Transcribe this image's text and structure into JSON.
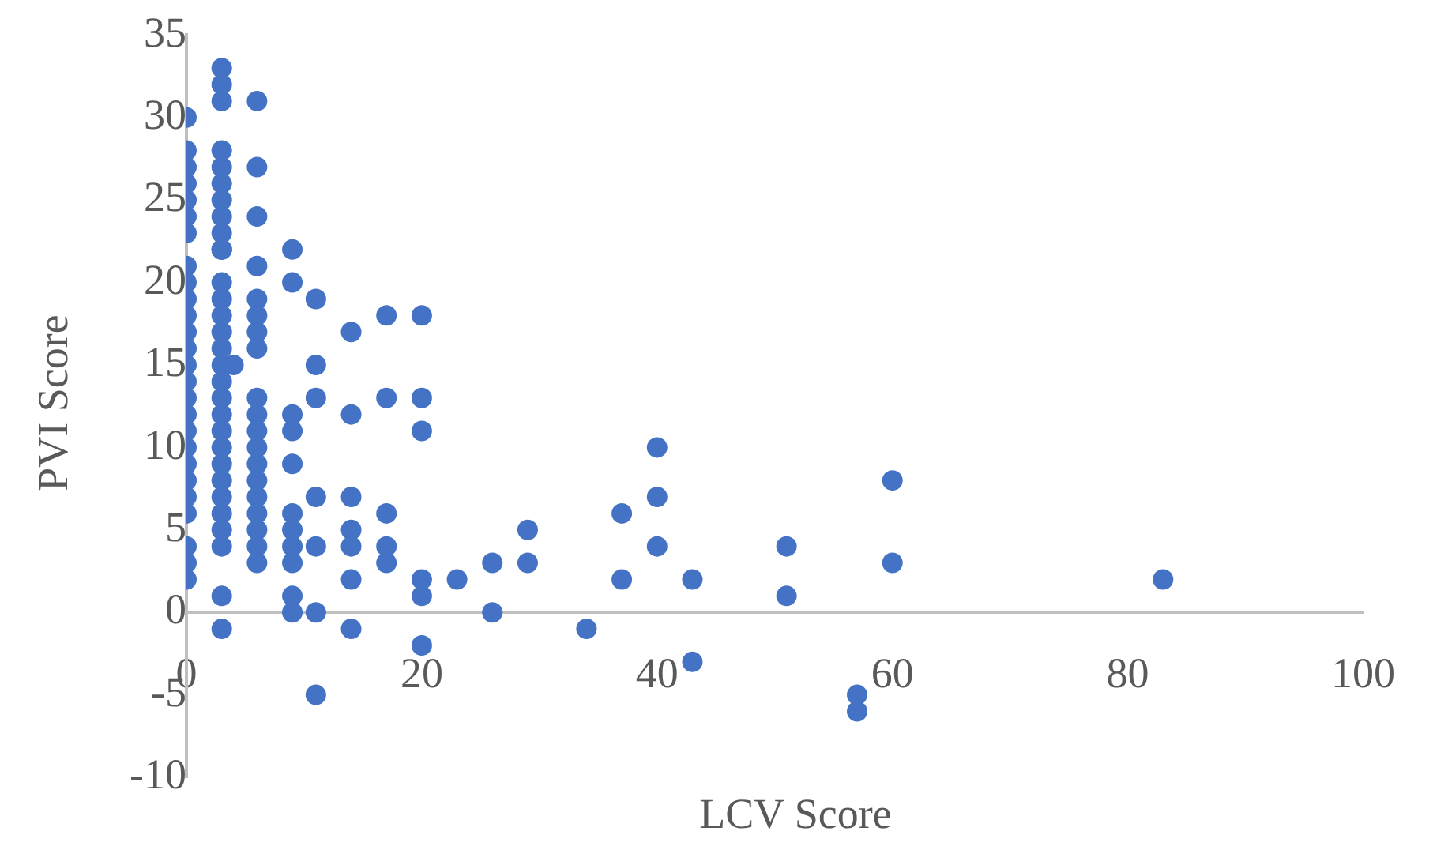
{
  "chart_data": {
    "type": "scatter",
    "xlabel": "LCV Score",
    "ylabel": "PVI Score",
    "xlim": [
      0,
      100
    ],
    "xticks": [
      0,
      20,
      40,
      60,
      80,
      100
    ],
    "ylim": [
      -10,
      35
    ],
    "yticks": [
      -10,
      -5,
      0,
      5,
      10,
      15,
      20,
      25,
      30,
      35
    ],
    "grid": false,
    "legend": false,
    "marker": "circle",
    "series": [
      {
        "color": "#4472c4",
        "x": [
          0,
          0,
          0,
          0,
          0,
          0,
          0,
          0,
          0,
          0,
          0,
          0,
          0,
          0,
          0,
          0,
          0,
          0,
          0,
          0,
          0,
          0,
          0,
          0,
          0,
          0,
          3,
          3,
          3,
          3,
          3,
          3,
          3,
          3,
          3,
          3,
          3,
          3,
          3,
          3,
          3,
          3,
          3,
          3,
          3,
          3,
          3,
          3,
          3,
          3,
          3,
          3,
          3,
          3,
          3,
          3,
          3,
          4,
          6,
          6,
          6,
          6,
          6,
          6,
          6,
          6,
          6,
          6,
          6,
          6,
          6,
          6,
          6,
          6,
          6,
          6,
          6,
          9,
          9,
          9,
          9,
          9,
          9,
          9,
          9,
          9,
          9,
          9,
          11,
          11,
          11,
          11,
          11,
          11,
          11,
          14,
          14,
          14,
          14,
          14,
          14,
          14,
          17,
          17,
          17,
          17,
          17,
          20,
          20,
          20,
          20,
          20,
          20,
          23,
          26,
          26,
          29,
          29,
          34,
          37,
          37,
          40,
          40,
          40,
          43,
          43,
          51,
          51,
          57,
          57,
          60,
          60,
          83
        ],
        "values": [
          30,
          28,
          27,
          26,
          25,
          24,
          23,
          21,
          20,
          19,
          18,
          17,
          16,
          15,
          14,
          13,
          12,
          11,
          10,
          9,
          8,
          7,
          6,
          4,
          3,
          2,
          33,
          32,
          31,
          28,
          27,
          26,
          25,
          24,
          23,
          20,
          19,
          18,
          17,
          16,
          15,
          14,
          13,
          12,
          11,
          10,
          9,
          8,
          7,
          6,
          5,
          4,
          1,
          -1,
          22,
          22,
          22,
          15,
          31,
          27,
          24,
          21,
          19,
          18,
          17,
          16,
          13,
          12,
          11,
          10,
          9,
          8,
          7,
          6,
          5,
          4,
          3,
          22,
          20,
          12,
          11,
          9,
          6,
          5,
          4,
          3,
          1,
          0,
          19,
          15,
          13,
          7,
          4,
          0,
          -5,
          17,
          12,
          7,
          5,
          4,
          2,
          -1,
          18,
          13,
          6,
          4,
          3,
          18,
          13,
          11,
          2,
          1,
          -2,
          2,
          3,
          0,
          5,
          3,
          -1,
          6,
          2,
          10,
          7,
          4,
          2,
          -3,
          4,
          1,
          -5,
          -6,
          8,
          3,
          2
        ]
      }
    ]
  }
}
